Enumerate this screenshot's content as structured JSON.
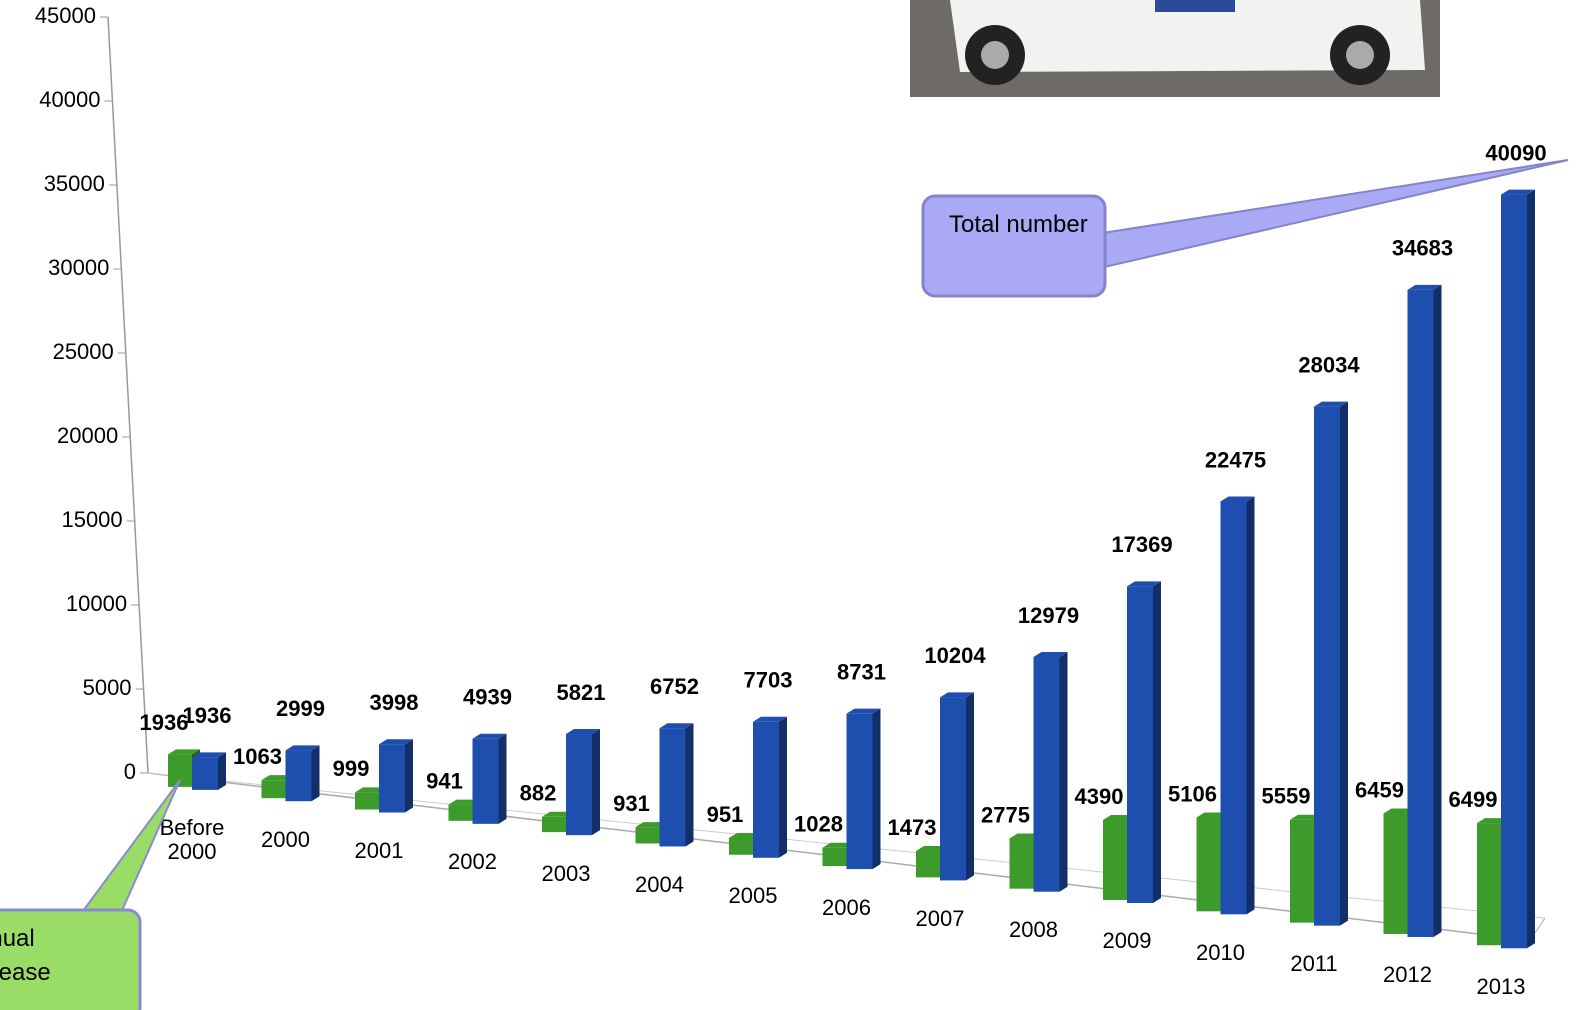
{
  "chart_data": {
    "type": "bar3d",
    "categories": [
      "Before 2000",
      "2000",
      "2001",
      "2002",
      "2003",
      "2004",
      "2005",
      "2006",
      "2007",
      "2008",
      "2009",
      "2010",
      "2011",
      "2012",
      "2013"
    ],
    "series": [
      {
        "name": "Annual increase",
        "color": "#3c9b2b",
        "values": [
          1936,
          1063,
          999,
          941,
          882,
          931,
          951,
          1028,
          1473,
          2775,
          4390,
          5106,
          5559,
          6459,
          6499
        ]
      },
      {
        "name": "Total number",
        "color": "#1f4fae",
        "values": [
          1936,
          2999,
          3998,
          4939,
          5821,
          6752,
          7703,
          8731,
          10204,
          12979,
          17369,
          22475,
          28034,
          34683,
          40090
        ]
      }
    ],
    "ylim": [
      0,
      45000
    ],
    "yticks": [
      0,
      5000,
      10000,
      15000,
      20000,
      25000,
      30000,
      35000,
      40000,
      45000
    ]
  }
}
